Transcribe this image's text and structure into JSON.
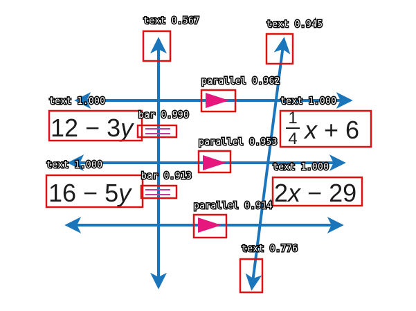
{
  "colors": {
    "line": "#1b75bb",
    "arrow_mark": "#e6177d",
    "box": "#dd1111",
    "bar_mark": "#c0399f"
  },
  "expressions": {
    "left_top": {
      "coef": "12",
      "op": "−",
      "term": "3",
      "var": "y"
    },
    "left_bottom": {
      "coef": "16",
      "op": "−",
      "term": "5",
      "var": "y"
    },
    "right_top": {
      "num": "1",
      "den": "4",
      "var": "x",
      "op": "+",
      "term": "6"
    },
    "right_bottom": {
      "coef": "2",
      "var": "x",
      "op": "−",
      "term": "29"
    }
  },
  "detections": [
    {
      "id": "det-text-top-left",
      "label": "text 0.567"
    },
    {
      "id": "det-text-top-right",
      "label": "text 0.945"
    },
    {
      "id": "det-parallel-1",
      "label": "parallel 0.962"
    },
    {
      "id": "det-text-left-1",
      "label": "text 1.000"
    },
    {
      "id": "det-text-right-1",
      "label": "text 1.000"
    },
    {
      "id": "det-bar-1",
      "label": "bar 0.990"
    },
    {
      "id": "det-parallel-2",
      "label": "parallel 0.953"
    },
    {
      "id": "det-text-left-2",
      "label": "text 1.000"
    },
    {
      "id": "det-text-right-2",
      "label": "text 1.000"
    },
    {
      "id": "det-bar-2",
      "label": "bar 0.913"
    },
    {
      "id": "det-parallel-3",
      "label": "parallel 0.914"
    },
    {
      "id": "det-text-bottom",
      "label": "text 0.776"
    }
  ]
}
